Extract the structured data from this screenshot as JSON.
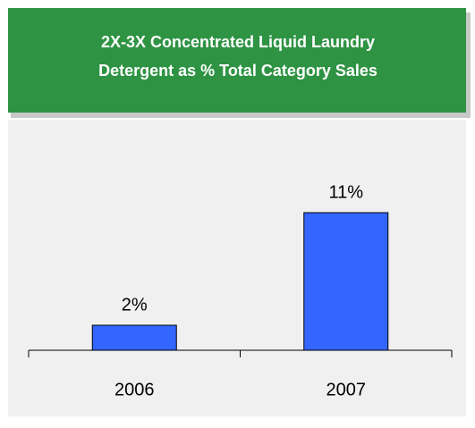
{
  "chart_data": {
    "type": "bar",
    "title_lines": [
      "2X-3X Concentrated Liquid Laundry",
      "Detergent as % Total Category Sales"
    ],
    "categories": [
      "2006",
      "2007"
    ],
    "values": [
      2,
      11
    ],
    "value_labels": [
      "2%",
      "11%"
    ],
    "color": "#3366ff"
  }
}
